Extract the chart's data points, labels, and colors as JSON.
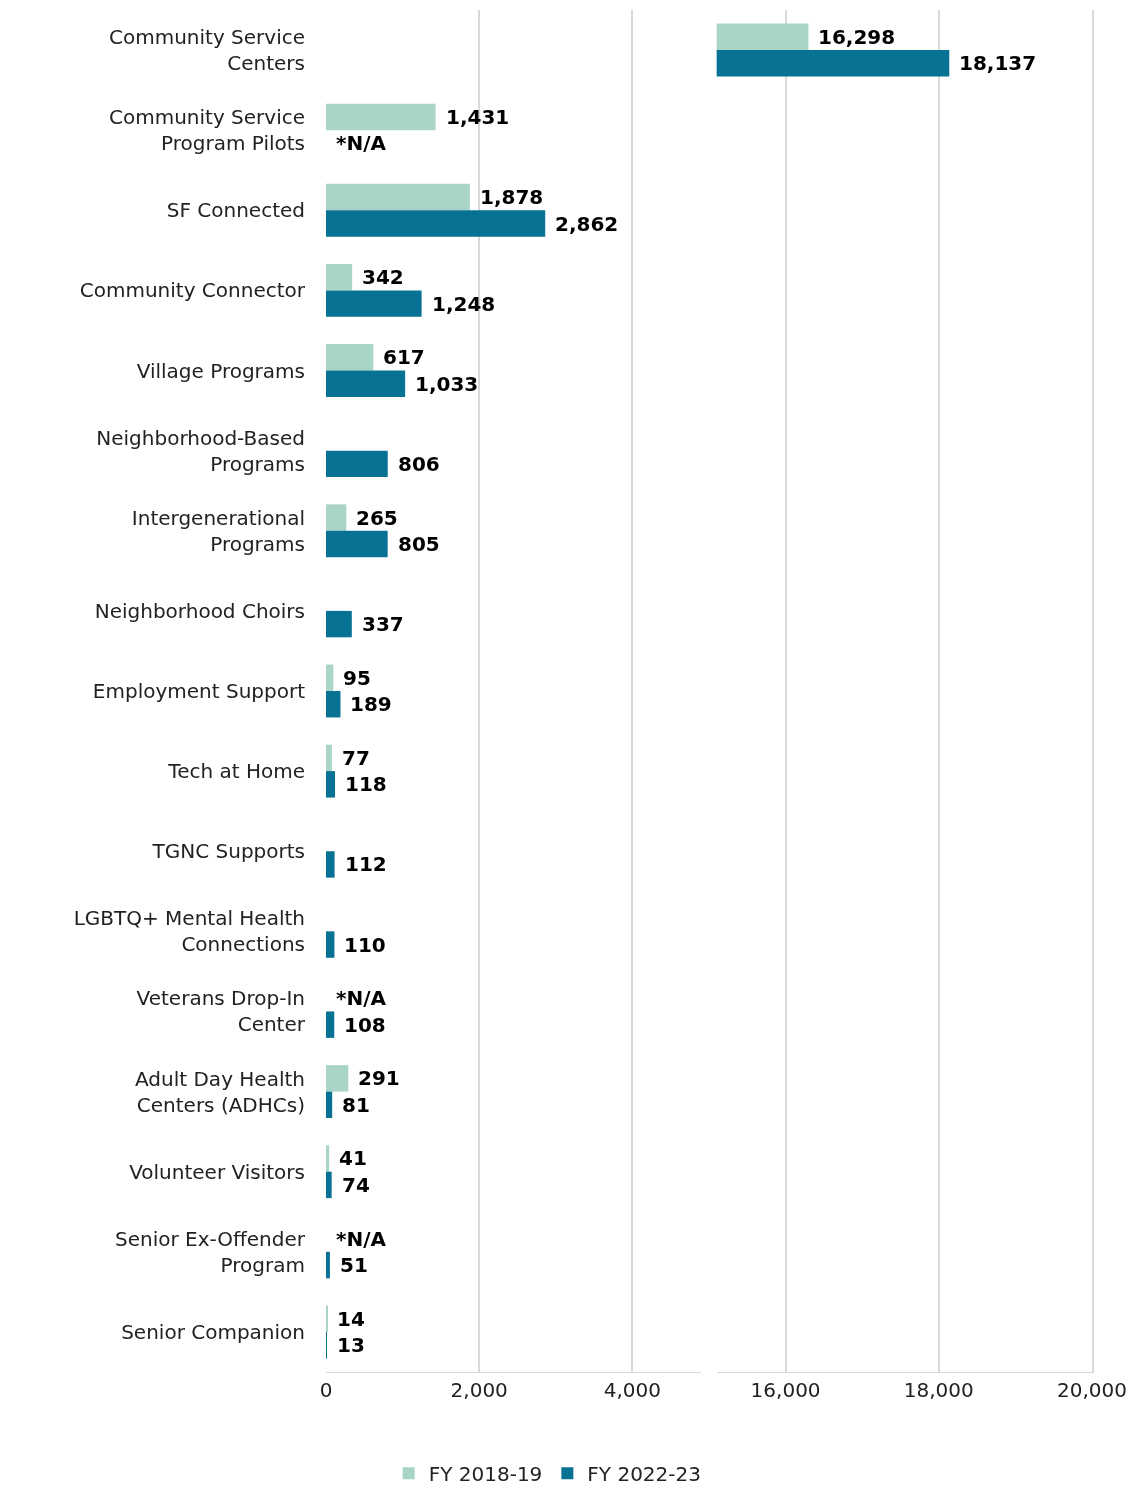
{
  "chart_data": [
    {
      "type": "bar",
      "orientation": "horizontal",
      "categories": [
        "Community Service Centers",
        "Community Service Program Pilots",
        "SF Connected",
        "Community Connector",
        "Village Programs",
        "Neighborhood-Based Programs",
        "Intergenerational Programs",
        "Neighborhood Choirs",
        "Employment Support",
        "Tech at Home",
        "TGNC Supports",
        "LGBTQ+ Mental Health Connections",
        "Veterans Drop-In Center",
        "Adult Day Health Centers (ADHCs)",
        "Volunteer Visitors",
        "Senior Ex-Offender Program",
        "Senior Companion"
      ],
      "series": [
        {
          "name": "FY 2018-19",
          "color": "#a8d5c8",
          "values": [
            null,
            1431,
            1878,
            342,
            617,
            null,
            265,
            null,
            95,
            77,
            null,
            null,
            null,
            291,
            41,
            null,
            14
          ],
          "value_labels": [
            null,
            "1,431",
            "1,878",
            "342",
            "617",
            null,
            "265",
            null,
            "95",
            "77",
            null,
            null,
            "*N/A",
            "291",
            "41",
            "*N/A",
            "14"
          ]
        },
        {
          "name": "FY 2022-23",
          "color": "#087294",
          "values": [
            null,
            null,
            2862,
            1248,
            1033,
            806,
            805,
            337,
            189,
            118,
            112,
            110,
            108,
            81,
            74,
            51,
            13
          ],
          "value_labels": [
            null,
            "*N/A",
            "2,862",
            "1,248",
            "1,033",
            "806",
            "805",
            "337",
            "189",
            "118",
            "112",
            "110",
            "108",
            "81",
            "74",
            "51",
            "13"
          ]
        }
      ],
      "xlim": [
        0,
        4900
      ],
      "xticks": [
        {
          "value": 0,
          "label": "0"
        },
        {
          "value": 2000,
          "label": "2,000"
        },
        {
          "value": 4000,
          "label": "4,000"
        }
      ],
      "grid": "x",
      "legend": "bottom"
    },
    {
      "type": "bar",
      "orientation": "horizontal",
      "categories": [
        "Community Service Centers",
        "Community Service Program Pilots",
        "SF Connected",
        "Community Connector",
        "Village Programs",
        "Neighborhood-Based Programs",
        "Intergenerational Programs",
        "Neighborhood Choirs",
        "Employment Support",
        "Tech at Home",
        "TGNC Supports",
        "LGBTQ+ Mental Health Connections",
        "Veterans Drop-In Center",
        "Adult Day Health Centers (ADHCs)",
        "Volunteer Visitors",
        "Senior Ex-Offender Program",
        "Senior Companion"
      ],
      "series": [
        {
          "color": "#a8d5c8",
          "values": [
            16298,
            null,
            null,
            null,
            null,
            null,
            null,
            null,
            null,
            null,
            null,
            null,
            null,
            null,
            null,
            null,
            null
          ],
          "value_labels": [
            "16,298",
            null,
            null,
            null,
            null,
            null,
            null,
            null,
            null,
            null,
            null,
            null,
            null,
            null,
            null,
            null,
            null
          ]
        },
        {
          "color": "#087294",
          "values": [
            18137,
            null,
            null,
            null,
            null,
            null,
            null,
            null,
            null,
            null,
            null,
            null,
            null,
            null,
            null,
            null,
            null
          ],
          "value_labels": [
            "18,137",
            null,
            null,
            null,
            null,
            null,
            null,
            null,
            null,
            null,
            null,
            null,
            null,
            null,
            null,
            null,
            null
          ]
        }
      ],
      "xlim": [
        15100,
        20000
      ],
      "xticks": [
        {
          "value": 16000,
          "label": "16,000"
        },
        {
          "value": 18000,
          "label": "18,000"
        },
        {
          "value": 20000,
          "label": "20,000"
        }
      ],
      "grid": "x",
      "tick_labels": "x"
    }
  ]
}
